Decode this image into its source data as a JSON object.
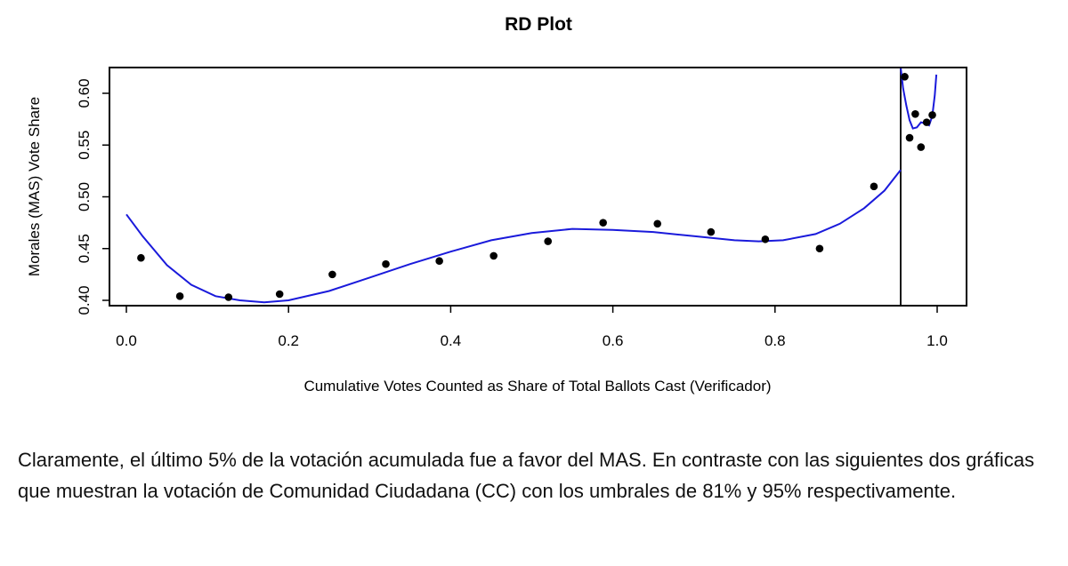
{
  "chart_data": {
    "type": "scatter",
    "title": "RD Plot",
    "xlabel": "Cumulative Votes Counted as Share of Total Ballots Cast (Verificador)",
    "ylabel": "Morales (MAS) Vote Share",
    "xlim": [
      0.0,
      1.0
    ],
    "ylim": [
      0.395,
      0.625
    ],
    "x_ticks": [
      "0.0",
      "0.2",
      "0.4",
      "0.6",
      "0.8",
      "1.0"
    ],
    "x_tick_values": [
      0.0,
      0.2,
      0.4,
      0.6,
      0.8,
      1.0
    ],
    "y_ticks": [
      "0.40",
      "0.45",
      "0.50",
      "0.55",
      "0.60"
    ],
    "y_tick_values": [
      0.4,
      0.45,
      0.5,
      0.55,
      0.6
    ],
    "grid": false,
    "cutoff": 0.955,
    "points": [
      {
        "x": 0.018,
        "y": 0.441
      },
      {
        "x": 0.066,
        "y": 0.404
      },
      {
        "x": 0.126,
        "y": 0.403
      },
      {
        "x": 0.189,
        "y": 0.406
      },
      {
        "x": 0.254,
        "y": 0.425
      },
      {
        "x": 0.32,
        "y": 0.435
      },
      {
        "x": 0.386,
        "y": 0.438
      },
      {
        "x": 0.453,
        "y": 0.443
      },
      {
        "x": 0.52,
        "y": 0.457
      },
      {
        "x": 0.588,
        "y": 0.475
      },
      {
        "x": 0.655,
        "y": 0.474
      },
      {
        "x": 0.721,
        "y": 0.466
      },
      {
        "x": 0.788,
        "y": 0.459
      },
      {
        "x": 0.855,
        "y": 0.45
      },
      {
        "x": 0.922,
        "y": 0.51
      },
      {
        "x": 0.96,
        "y": 0.616
      },
      {
        "x": 0.966,
        "y": 0.557
      },
      {
        "x": 0.973,
        "y": 0.58
      },
      {
        "x": 0.98,
        "y": 0.548
      },
      {
        "x": 0.987,
        "y": 0.572
      },
      {
        "x": 0.994,
        "y": 0.579
      }
    ],
    "fit_left": [
      {
        "x": 0.0,
        "y": 0.483
      },
      {
        "x": 0.02,
        "y": 0.462
      },
      {
        "x": 0.05,
        "y": 0.434
      },
      {
        "x": 0.08,
        "y": 0.415
      },
      {
        "x": 0.11,
        "y": 0.404
      },
      {
        "x": 0.14,
        "y": 0.4
      },
      {
        "x": 0.17,
        "y": 0.398
      },
      {
        "x": 0.2,
        "y": 0.4
      },
      {
        "x": 0.25,
        "y": 0.409
      },
      {
        "x": 0.3,
        "y": 0.422
      },
      {
        "x": 0.35,
        "y": 0.435
      },
      {
        "x": 0.4,
        "y": 0.447
      },
      {
        "x": 0.45,
        "y": 0.458
      },
      {
        "x": 0.5,
        "y": 0.465
      },
      {
        "x": 0.55,
        "y": 0.469
      },
      {
        "x": 0.6,
        "y": 0.468
      },
      {
        "x": 0.65,
        "y": 0.466
      },
      {
        "x": 0.7,
        "y": 0.462
      },
      {
        "x": 0.75,
        "y": 0.458
      },
      {
        "x": 0.78,
        "y": 0.457
      },
      {
        "x": 0.81,
        "y": 0.458
      },
      {
        "x": 0.85,
        "y": 0.464
      },
      {
        "x": 0.88,
        "y": 0.474
      },
      {
        "x": 0.91,
        "y": 0.489
      },
      {
        "x": 0.935,
        "y": 0.506
      },
      {
        "x": 0.955,
        "y": 0.526
      }
    ],
    "fit_right": [
      {
        "x": 0.955,
        "y": 0.625
      },
      {
        "x": 0.958,
        "y": 0.605
      },
      {
        "x": 0.962,
        "y": 0.588
      },
      {
        "x": 0.966,
        "y": 0.574
      },
      {
        "x": 0.97,
        "y": 0.566
      },
      {
        "x": 0.975,
        "y": 0.567
      },
      {
        "x": 0.98,
        "y": 0.572
      },
      {
        "x": 0.985,
        "y": 0.571
      },
      {
        "x": 0.99,
        "y": 0.569
      },
      {
        "x": 0.994,
        "y": 0.578
      },
      {
        "x": 0.997,
        "y": 0.598
      },
      {
        "x": 0.999,
        "y": 0.618
      }
    ],
    "colors": {
      "fit": "#1a1adb",
      "points": "#000000",
      "axes": "#000000"
    }
  },
  "caption": "Claramente, el último 5% de la votación acumulada fue a favor del MAS. En contraste con las siguientes dos gráficas que muestran la votación de Comunidad Ciudadana (CC) con los umbrales de 81% y 95% respectivamente."
}
